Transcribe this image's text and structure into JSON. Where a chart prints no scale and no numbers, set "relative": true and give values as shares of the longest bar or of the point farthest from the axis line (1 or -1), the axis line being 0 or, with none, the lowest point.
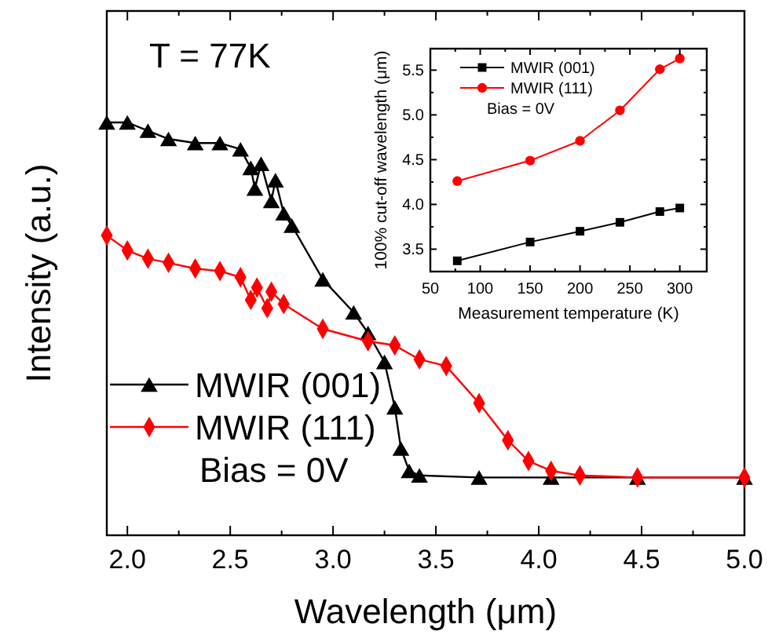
{
  "chart_data": [
    {
      "type": "line",
      "xlabel": "Wavelength (μm)",
      "ylabel": "Intensity (a.u.)",
      "relative": true,
      "legend": "bottom left",
      "annotations": [
        "T = 77K",
        "Bias = 0V"
      ],
      "xlim": [
        1.9,
        5.0
      ],
      "xticks": [
        {
          "value": 2,
          "label": "2.0"
        },
        {
          "value": 2.25,
          "label": null
        },
        2.5,
        {
          "value": 2.75,
          "label": null
        },
        {
          "value": 3,
          "label": "3.0"
        },
        {
          "value": 3.25,
          "label": null
        },
        3.5,
        {
          "value": 3.75,
          "label": null
        },
        {
          "value": 4,
          "label": "4.0"
        },
        {
          "value": 4.25,
          "label": null
        },
        4.5,
        {
          "value": 4.75,
          "label": null
        },
        {
          "value": 5,
          "label": "5.0"
        }
      ],
      "series": [
        {
          "name": "MWIR (001)",
          "color": "#000000",
          "marker": "triangle",
          "x": [
            1.9,
            2.0,
            2.1,
            2.2,
            2.33,
            2.45,
            2.55,
            2.6,
            2.62,
            2.65,
            2.7,
            2.72,
            2.76,
            2.8,
            2.95,
            3.1,
            3.17,
            3.25,
            3.3,
            3.33,
            3.37,
            3.42,
            3.71,
            4.06,
            4.48,
            5.0
          ],
          "values": [
            1.0,
            1.0,
            0.98,
            0.96,
            0.95,
            0.95,
            0.935,
            0.89,
            0.84,
            0.9,
            0.81,
            0.86,
            0.78,
            0.75,
            0.62,
            0.54,
            0.49,
            0.42,
            0.31,
            0.21,
            0.156,
            0.145,
            0.14,
            0.14,
            0.14,
            0.14
          ]
        },
        {
          "name": "MWIR (111)",
          "color": "#ff0000",
          "marker": "diamond",
          "x": [
            1.9,
            2.0,
            2.1,
            2.2,
            2.33,
            2.45,
            2.55,
            2.6,
            2.63,
            2.68,
            2.7,
            2.76,
            2.95,
            3.17,
            3.3,
            3.42,
            3.55,
            3.71,
            3.85,
            3.95,
            4.06,
            4.2,
            4.48,
            5.0
          ],
          "values": [
            0.726,
            0.69,
            0.67,
            0.66,
            0.646,
            0.64,
            0.625,
            0.57,
            0.6,
            0.55,
            0.59,
            0.56,
            0.5,
            0.47,
            0.46,
            0.426,
            0.41,
            0.32,
            0.23,
            0.18,
            0.156,
            0.145,
            0.14,
            0.14
          ]
        }
      ]
    },
    {
      "type": "line",
      "xlabel": "Measurement temperature (K)",
      "ylabel": "100% cut-off wavelength (μm)",
      "legend": "top left",
      "annotations": [
        "Bias = 0V"
      ],
      "xlim": [
        50,
        327
      ],
      "xticks": [
        50,
        {
          "value": 75,
          "label": null
        },
        100,
        {
          "value": 125,
          "label": null
        },
        150,
        {
          "value": 175,
          "label": null
        },
        200,
        {
          "value": 225,
          "label": null
        },
        250,
        {
          "value": 275,
          "label": null
        },
        300
      ],
      "ylim": [
        3.25,
        5.74
      ],
      "yticks": [
        3.5,
        {
          "value": 3.75,
          "label": null
        },
        {
          "value": 4,
          "label": "4.0"
        },
        {
          "value": 4.25,
          "label": null
        },
        4.5,
        {
          "value": 4.75,
          "label": null
        },
        {
          "value": 5,
          "label": "5.0"
        },
        {
          "value": 5.25,
          "label": null
        },
        5.5
      ],
      "x": [
        77,
        150,
        200,
        240,
        280,
        300
      ],
      "series": [
        {
          "name": "MWIR (001)",
          "color": "#000000",
          "marker": "square",
          "values": [
            3.37,
            3.58,
            3.7,
            3.8,
            3.92,
            3.96
          ]
        },
        {
          "name": "MWIR (111)",
          "color": "#ff0000",
          "marker": "circle",
          "values": [
            4.26,
            4.49,
            4.71,
            5.05,
            5.51,
            5.63
          ]
        }
      ]
    }
  ]
}
